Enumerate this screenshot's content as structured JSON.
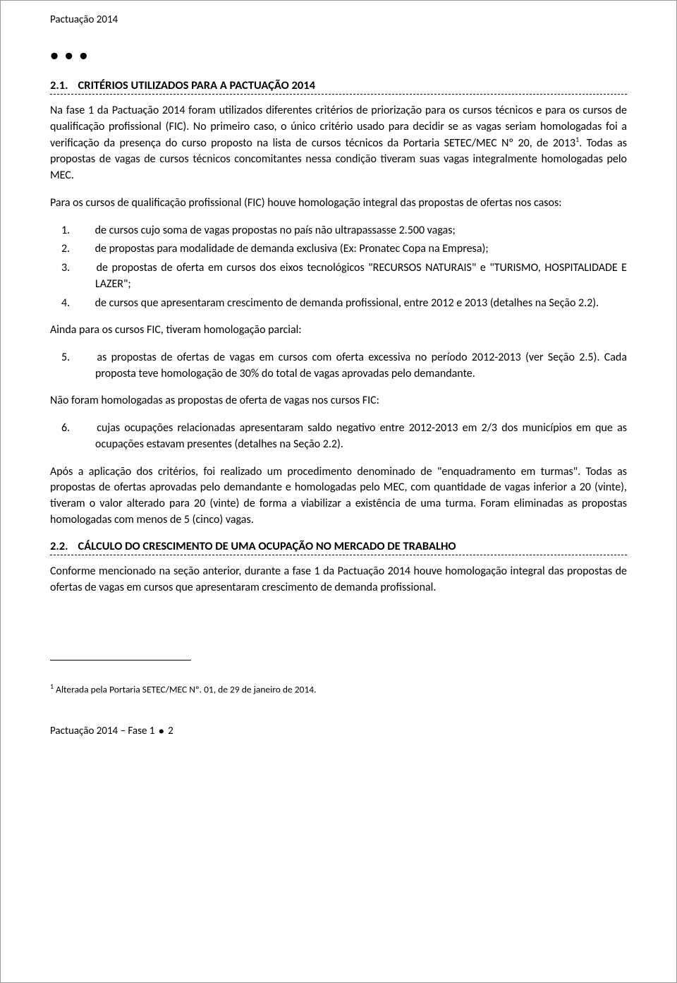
{
  "header": {
    "title": "Pactuação 2014"
  },
  "dots": "● ● ●",
  "section1": {
    "number": "2.1.",
    "title": "CRITÉRIOS UTILIZADOS PARA A PACTUAÇÃO 2014",
    "para1_a": "Na fase 1 da Pactuação 2014 foram utilizados diferentes critérios de priorização para os cursos técnicos e para os cursos de qualificação profissional (FIC). No primeiro caso, o único critério usado para decidir se as vagas seriam homologadas foi a verificação da presença do curso proposto na lista de cursos técnicos da Portaria SETEC/MEC Nº 20, de 2013",
    "para1_sup": "1",
    "para1_b": ". Todas as propostas de vagas de cursos técnicos concomitantes nessa condição tiveram suas vagas integralmente homologadas pelo MEC.",
    "para2": "Para os cursos de qualificação profissional (FIC) houve homologação integral das propostas de ofertas nos casos:",
    "list1": [
      {
        "n": "1.",
        "t": "de cursos cujo soma de vagas propostas no país não ultrapassasse 2.500 vagas;"
      },
      {
        "n": "2.",
        "t": "de propostas para modalidade de demanda exclusiva (Ex: Pronatec Copa na Empresa);"
      },
      {
        "n": "3.",
        "t": "de propostas de oferta em cursos dos eixos tecnológicos \"RECURSOS NATURAIS\" e \"TURISMO, HOSPITALIDADE E LAZER\";"
      },
      {
        "n": "4.",
        "t": "de cursos que apresentaram crescimento de demanda profissional, entre 2012 e 2013 (detalhes na Seção 2.2)."
      }
    ],
    "para3": "Ainda para os cursos FIC, tiveram homologação parcial:",
    "list2": [
      {
        "n": "5.",
        "t": "as propostas de ofertas de vagas em cursos com oferta excessiva no período 2012-2013 (ver Seção 2.5). Cada proposta teve homologação de 30% do total de vagas aprovadas pelo demandante."
      }
    ],
    "para4": "Não foram homologadas as propostas de oferta de vagas nos cursos FIC:",
    "list3": [
      {
        "n": "6.",
        "t": " cujas ocupações relacionadas apresentaram saldo negativo entre 2012-2013 em 2/3 dos municípios em que as ocupações estavam presentes (detalhes na Seção 2.2)."
      }
    ],
    "para5": "Após a aplicação dos critérios, foi realizado um procedimento denominado de \"enquadramento em turmas\". Todas as propostas de ofertas aprovadas pelo demandante e homologadas pelo MEC, com quantidade de vagas inferior a 20 (vinte), tiveram o valor alterado para 20 (vinte) de forma a viabilizar a existência de uma turma. Foram eliminadas as propostas homologadas com menos de 5 (cinco) vagas."
  },
  "section2": {
    "number": "2.2.",
    "title": "CÁLCULO DO CRESCIMENTO DE UMA OCUPAÇÃO NO MERCADO DE TRABALHO",
    "para1": "Conforme mencionado na seção anterior, durante a fase 1 da Pactuação 2014 houve homologação integral das propostas de ofertas de vagas em cursos que apresentaram crescimento de demanda profissional."
  },
  "footnote": {
    "marker": "1",
    "text": " Alterada pela Portaria SETEC/MEC Nº. 01, de 29 de janeiro de 2014."
  },
  "footer": {
    "left_a": "Pactuação 2014 – Fase 1 ",
    "bullet": "●",
    "left_b": " 2"
  }
}
